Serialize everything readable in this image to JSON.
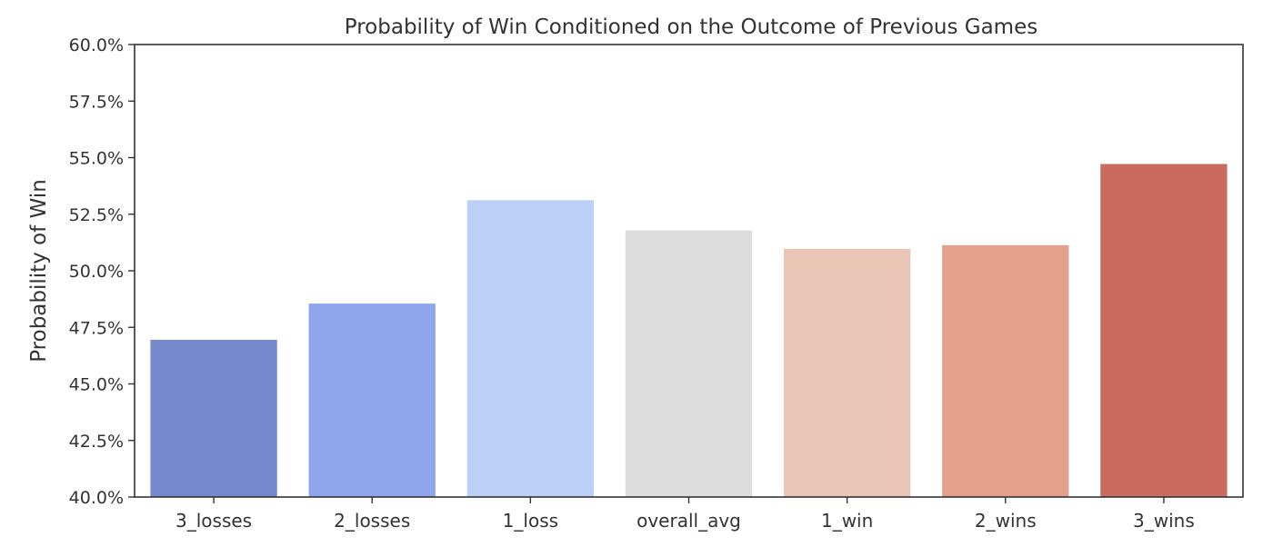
{
  "chart_data": {
    "type": "bar",
    "title": "Probability of Win Conditioned on the Outcome of Previous Games",
    "xlabel": "",
    "ylabel": "Probability of Win",
    "ylim": [
      0.4,
      0.6
    ],
    "yticks": [
      "40.0%",
      "42.5%",
      "45.0%",
      "47.5%",
      "50.0%",
      "52.5%",
      "55.0%",
      "57.5%",
      "60.0%"
    ],
    "categories": [
      "3_losses",
      "2_losses",
      "1_loss",
      "overall_avg",
      "1_win",
      "2_wins",
      "3_wins"
    ],
    "values": [
      0.4695,
      0.4855,
      0.5312,
      0.5178,
      0.5097,
      0.5113,
      0.5472
    ],
    "colors": [
      "#7689cc",
      "#8fa6ee",
      "#bccff6",
      "#dddddd",
      "#e9c6b5",
      "#e3a08b",
      "#c96b5f"
    ],
    "grid": false,
    "legend": "none"
  }
}
